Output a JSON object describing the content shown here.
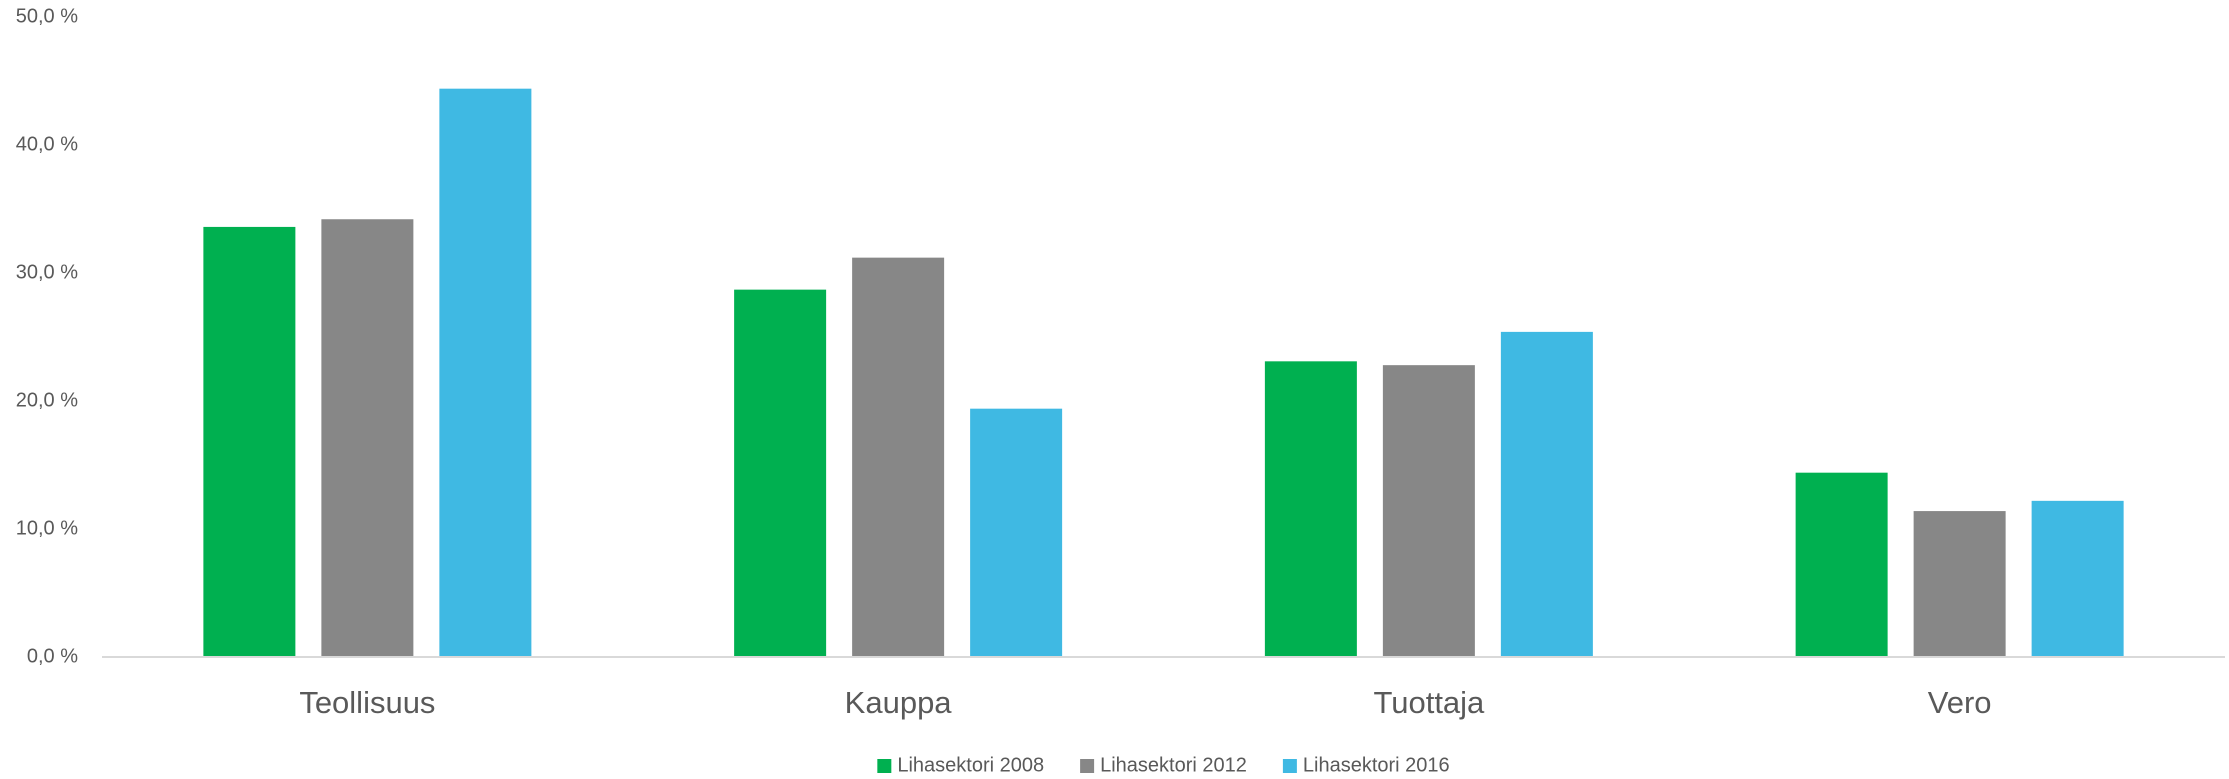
{
  "chart_data": {
    "type": "bar",
    "categories": [
      "Teollisuus",
      "Kauppa",
      "Tuottaja",
      "Vero"
    ],
    "series": [
      {
        "name": "Lihasektori 2008",
        "color": "#00b050",
        "values": [
          33.6,
          28.7,
          23.1,
          14.4
        ]
      },
      {
        "name": "Lihasektori 2012",
        "color": "#878787",
        "values": [
          34.2,
          31.2,
          22.8,
          11.4
        ]
      },
      {
        "name": "Lihasektori 2016",
        "color": "#3fb9e3",
        "values": [
          44.4,
          19.4,
          25.4,
          12.2
        ]
      }
    ],
    "ylim": [
      0,
      50
    ],
    "yticks": [
      {
        "value": 0,
        "label": "0,0 %"
      },
      {
        "value": 10,
        "label": "10,0 %"
      },
      {
        "value": 20,
        "label": "20,0 %"
      },
      {
        "value": 30,
        "label": "30,0 %"
      },
      {
        "value": 40,
        "label": "40,0 %"
      },
      {
        "value": 50,
        "label": "50,0 %"
      }
    ],
    "grid": false,
    "legend": "bottom"
  }
}
